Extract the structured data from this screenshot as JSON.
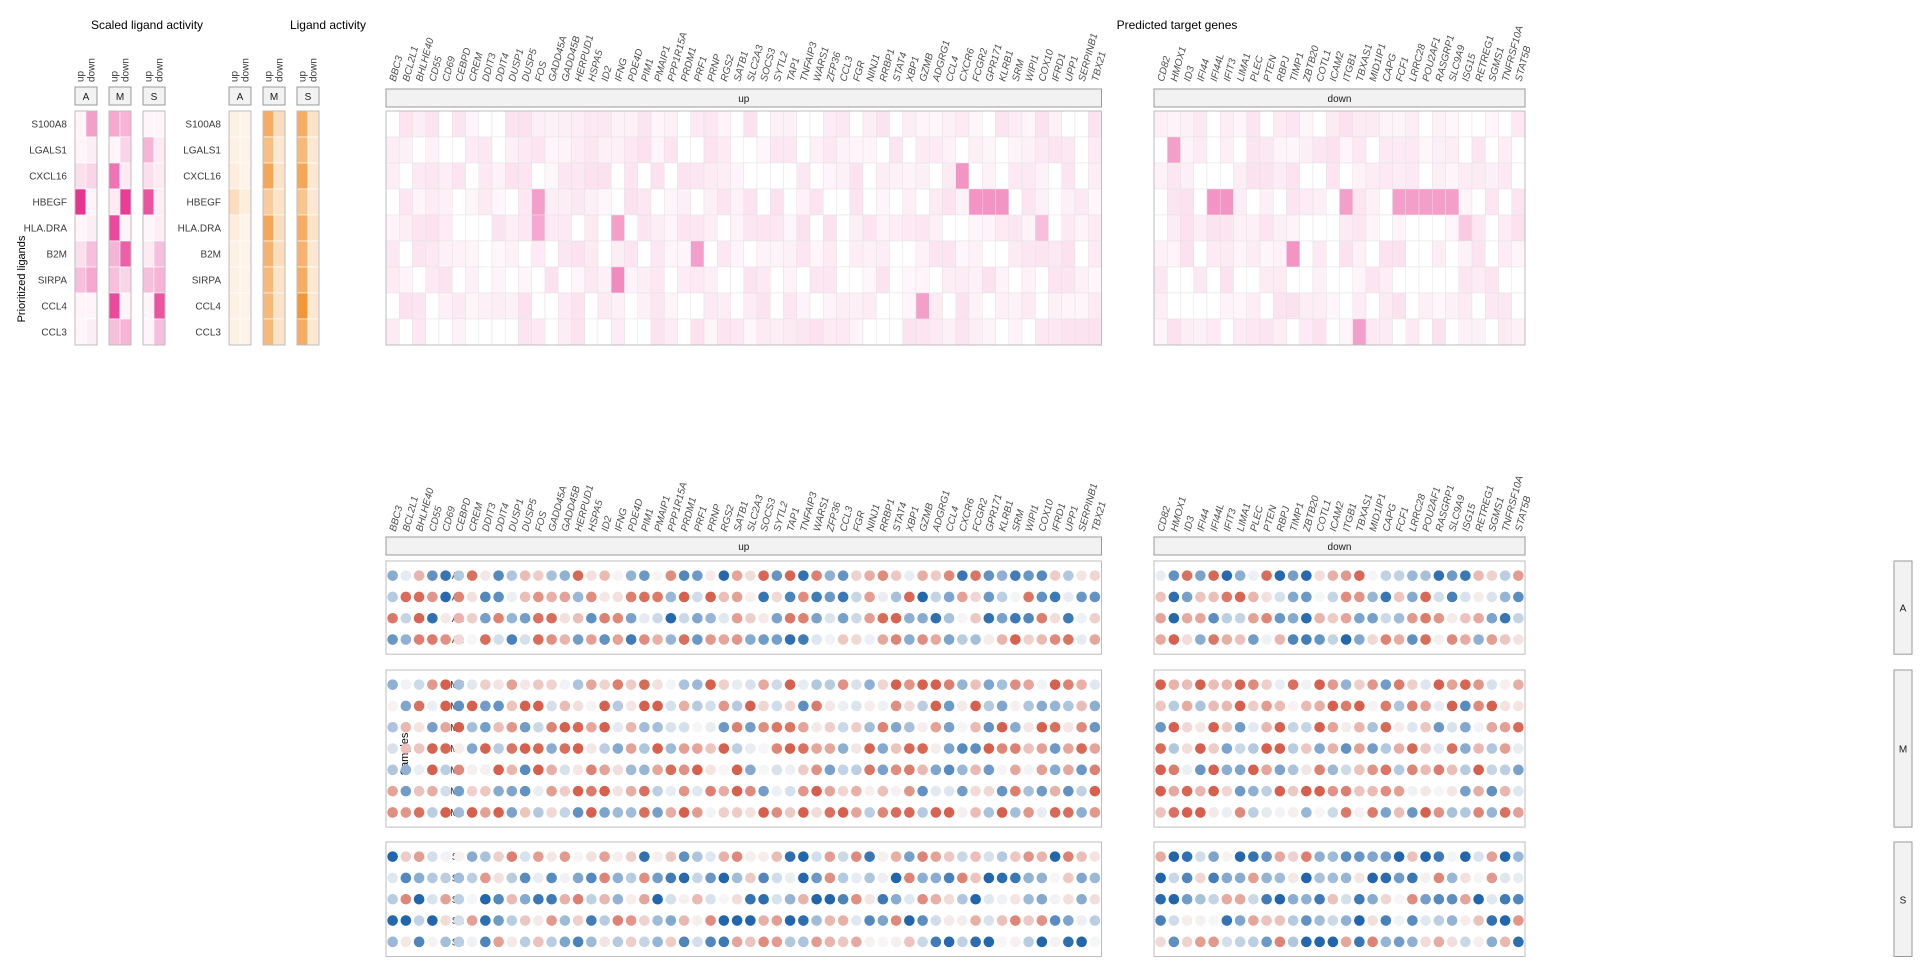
{
  "titles": {
    "scaled": "Scaled ligand activity",
    "activity": "Ligand activity",
    "targets": "Predicted target genes",
    "ylab_ligands": "Prioritized ligands",
    "ylab_samples": "Samples"
  },
  "direction_labels": [
    "up",
    "down"
  ],
  "groups": [
    "A",
    "M",
    "S"
  ],
  "ligands": [
    "S100A8",
    "LGALS1",
    "CXCL16",
    "HBEGF",
    "HLA.DRA",
    "B2M",
    "SIRPA",
    "CCL4",
    "CCL3"
  ],
  "genes_up": [
    "BBC3",
    "BCL2L1",
    "BHLHE40",
    "CD55",
    "CD69",
    "CEBPD",
    "CREM",
    "DDIT3",
    "DDIT4",
    "DUSP1",
    "DUSP5",
    "FOS",
    "GADD45A",
    "GADD45B",
    "HERPUD1",
    "HSPA5",
    "ID2",
    "IFNG",
    "PDE4D",
    "PIM1",
    "PMAIP1",
    "PPP1R15A",
    "PRDM1",
    "PRF1",
    "PRNP",
    "RGS2",
    "SATB1",
    "SLC2A3",
    "SOCS3",
    "SYTL2",
    "TAP1",
    "TNFAIP3",
    "WARS1",
    "ZFP36",
    "CCL3",
    "FGR",
    "NINJ1",
    "RRBP1",
    "STAT4",
    "XBP1",
    "GZMB",
    "ADGRG1",
    "CCL4",
    "CXCR6",
    "FCGR2",
    "GPR171",
    "KLRB1",
    "SRM",
    "WIPI1",
    "COX10",
    "IFRD1",
    "UPP1",
    "SERPINB1",
    "TBX21"
  ],
  "genes_down": [
    "CD82",
    "HMOX1",
    "ID3",
    "IFI44",
    "IFI44L",
    "IFIT3",
    "LIMA1",
    "PLEC",
    "PTEN",
    "RBPJ",
    "TIMP1",
    "ZBTB20",
    "COTL1",
    "ICAM2",
    "ITGB1",
    "TBXAS1",
    "MID1IP1",
    "CAPG",
    "FCF1",
    "LRRC28",
    "POU2AF1",
    "RASGRP1",
    "SLC9A9",
    "ISG15",
    "RETREG1",
    "SGMS1",
    "TNFRSF10A",
    "STAT5B"
  ],
  "samples": {
    "A": [
      "A4",
      "A3",
      "A2",
      "A1"
    ],
    "M": [
      "M7",
      "M6",
      "M5",
      "M4",
      "M3",
      "M2",
      "M1"
    ],
    "S": [
      "S5",
      "S4",
      "S3",
      "S2",
      "S1"
    ]
  },
  "colors": {
    "pink": "#e7298a",
    "orange": "#f28a1e",
    "blue": "#2166ac",
    "red": "#d6604d",
    "strip_fill": "#f2f2f2",
    "strip_border": "#999999",
    "grid": "#e3e3e3"
  },
  "chart_data": [
    {
      "type": "heatmap",
      "title": "Scaled ligand activity",
      "ylabel": "Prioritized ligands",
      "rows": [
        "S100A8",
        "LGALS1",
        "CXCL16",
        "HBEGF",
        "HLA.DRA",
        "B2M",
        "SIRPA",
        "CCL4",
        "CCL3"
      ],
      "facets": [
        "A",
        "M",
        "S"
      ],
      "columns": [
        "up",
        "down"
      ],
      "values": {
        "A": [
          [
            0.05,
            0.45
          ],
          [
            0.05,
            0.08
          ],
          [
            0.15,
            0.2
          ],
          [
            0.95,
            0.05
          ],
          [
            0.05,
            0.08
          ],
          [
            0.15,
            0.3
          ],
          [
            0.3,
            0.4
          ],
          [
            0.05,
            0.05
          ],
          [
            0.05,
            0.08
          ]
        ],
        "M": [
          [
            0.4,
            0.35
          ],
          [
            0.05,
            0.2
          ],
          [
            0.65,
            0.1
          ],
          [
            0.1,
            0.9
          ],
          [
            0.85,
            0.05
          ],
          [
            0.35,
            0.75
          ],
          [
            0.3,
            0.2
          ],
          [
            0.85,
            0.05
          ],
          [
            0.3,
            0.35
          ]
        ],
        "S": [
          [
            0.05,
            0.05
          ],
          [
            0.35,
            0.1
          ],
          [
            0.15,
            0.1
          ],
          [
            0.8,
            0.08
          ],
          [
            0.05,
            0.08
          ],
          [
            0.1,
            0.3
          ],
          [
            0.3,
            0.35
          ],
          [
            0.05,
            0.8
          ],
          [
            0.05,
            0.3
          ]
        ]
      }
    },
    {
      "type": "heatmap",
      "title": "Ligand activity",
      "rows": [
        "S100A8",
        "LGALS1",
        "CXCL16",
        "HBEGF",
        "HLA.DRA",
        "B2M",
        "SIRPA",
        "CCL4",
        "CCL3"
      ],
      "facets": [
        "A",
        "M",
        "S"
      ],
      "columns": [
        "up",
        "down"
      ],
      "values": {
        "A": [
          [
            0.12,
            0.1
          ],
          [
            0.12,
            0.1
          ],
          [
            0.15,
            0.1
          ],
          [
            0.3,
            0.15
          ],
          [
            0.15,
            0.1
          ],
          [
            0.12,
            0.1
          ],
          [
            0.12,
            0.1
          ],
          [
            0.12,
            0.1
          ],
          [
            0.12,
            0.1
          ]
        ],
        "M": [
          [
            0.7,
            0.3
          ],
          [
            0.55,
            0.2
          ],
          [
            0.75,
            0.25
          ],
          [
            0.45,
            0.25
          ],
          [
            0.75,
            0.3
          ],
          [
            0.65,
            0.3
          ],
          [
            0.6,
            0.25
          ],
          [
            0.6,
            0.25
          ],
          [
            0.6,
            0.25
          ]
        ],
        "S": [
          [
            0.7,
            0.25
          ],
          [
            0.6,
            0.2
          ],
          [
            0.75,
            0.2
          ],
          [
            0.5,
            0.2
          ],
          [
            0.7,
            0.25
          ],
          [
            0.65,
            0.2
          ],
          [
            0.7,
            0.2
          ],
          [
            0.9,
            0.2
          ],
          [
            0.7,
            0.2
          ]
        ]
      }
    },
    {
      "type": "heatmap",
      "title": "Predicted target genes",
      "facets": [
        "up",
        "down"
      ],
      "rows": [
        "S100A8",
        "LGALS1",
        "CXCL16",
        "HBEGF",
        "HLA.DRA",
        "B2M",
        "SIRPA",
        "CCL4",
        "CCL3"
      ],
      "seed": 7,
      "highlights": [
        {
          "row": "HBEGF",
          "gene": "FOS",
          "value": 0.45
        },
        {
          "row": "HLA.DRA",
          "gene": "FOS",
          "value": 0.4
        },
        {
          "row": "HLA.DRA",
          "gene": "IFNG",
          "value": 0.45
        },
        {
          "row": "SIRPA",
          "gene": "IFNG",
          "value": 0.55
        },
        {
          "row": "B2M",
          "gene": "PRF1",
          "value": 0.45
        },
        {
          "row": "CXCL16",
          "gene": "CXCR6",
          "value": 0.5
        },
        {
          "row": "HBEGF",
          "gene": "FCGR2",
          "value": 0.5
        },
        {
          "row": "HBEGF",
          "gene": "GPR171",
          "value": 0.5
        },
        {
          "row": "HBEGF",
          "gene": "KLRB1",
          "value": 0.5
        },
        {
          "row": "CCL4",
          "gene": "GZMB",
          "value": 0.45
        },
        {
          "row": "HLA.DRA",
          "gene": "COX10",
          "value": 0.3
        },
        {
          "row": "LGALS1",
          "gene": "HMOX1",
          "value": 0.45
        },
        {
          "row": "HBEGF",
          "gene": "IFI44L",
          "value": 0.5
        },
        {
          "row": "HBEGF",
          "gene": "IFIT3",
          "value": 0.5
        },
        {
          "row": "B2M",
          "gene": "TIMP1",
          "value": 0.5
        },
        {
          "row": "HBEGF",
          "gene": "ITGB1",
          "value": 0.45
        },
        {
          "row": "CCL3",
          "gene": "TBXAS1",
          "value": 0.45
        },
        {
          "row": "HBEGF",
          "gene": "LRRC28",
          "value": 0.45
        },
        {
          "row": "HBEGF",
          "gene": "POU2AF1",
          "value": 0.45
        },
        {
          "row": "HBEGF",
          "gene": "RASGRP1",
          "value": 0.45
        },
        {
          "row": "HBEGF",
          "gene": "SLC9A9",
          "value": 0.45
        },
        {
          "row": "HBEGF",
          "gene": "FCF1",
          "value": 0.45
        },
        {
          "row": "HLA.DRA",
          "gene": "ISG15",
          "value": 0.25
        }
      ]
    },
    {
      "type": "scatter",
      "subtype": "dotplot",
      "ylabel": "Samples",
      "note": "scaled expression per sample, diverging blue (low) to red (high)",
      "seed": 13
    }
  ]
}
